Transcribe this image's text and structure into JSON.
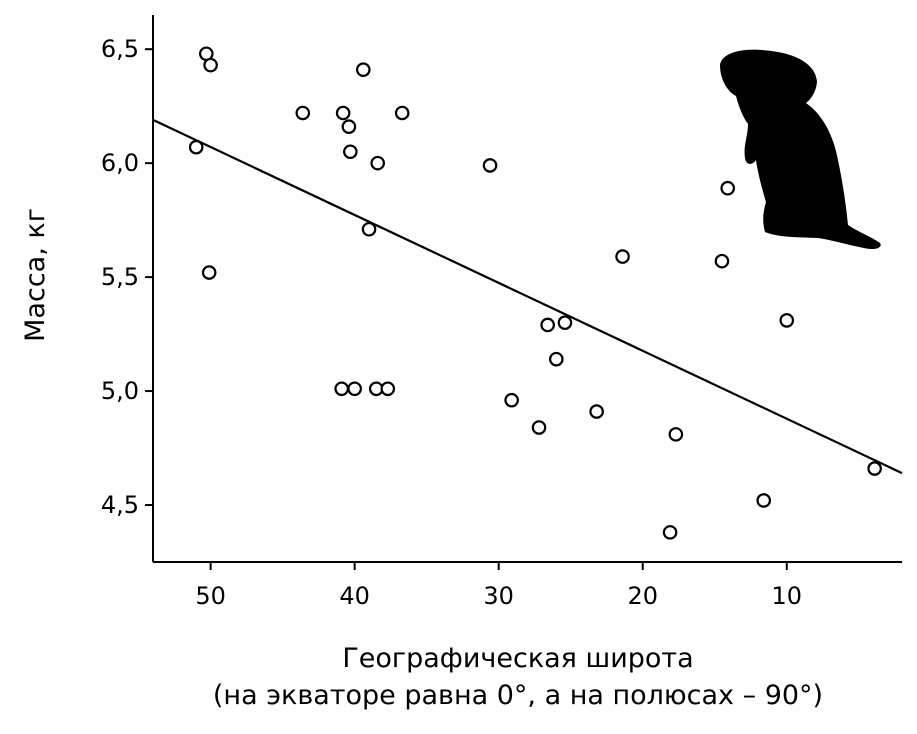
{
  "chart_data": {
    "type": "scatter",
    "xlabel": "Географическая широта",
    "xlabel_note": "(на экваторе равна 0°, а на полюсах – 90°)",
    "ylabel": "Масса, кг",
    "x_reversed": true,
    "xlim": [
      2,
      54
    ],
    "ylim": [
      4.25,
      6.65
    ],
    "x_ticks": [
      50,
      40,
      30,
      20,
      10
    ],
    "x_tick_labels": [
      "50",
      "40",
      "30",
      "20",
      "10"
    ],
    "y_ticks": [
      6.5,
      6.0,
      5.5,
      5.0,
      4.5
    ],
    "y_tick_labels": [
      "6,5",
      "6,0",
      "5,5",
      "5,0",
      "4,5"
    ],
    "grid": false,
    "marker": "open-circle",
    "points": [
      {
        "x": 50.3,
        "y": 6.48
      },
      {
        "x": 50.0,
        "y": 6.43
      },
      {
        "x": 51.0,
        "y": 6.07
      },
      {
        "x": 50.1,
        "y": 5.52
      },
      {
        "x": 43.6,
        "y": 6.22
      },
      {
        "x": 40.8,
        "y": 6.22
      },
      {
        "x": 40.4,
        "y": 6.16
      },
      {
        "x": 39.4,
        "y": 6.41
      },
      {
        "x": 36.7,
        "y": 6.22
      },
      {
        "x": 40.3,
        "y": 6.05
      },
      {
        "x": 38.4,
        "y": 6.0
      },
      {
        "x": 39.0,
        "y": 5.71
      },
      {
        "x": 30.6,
        "y": 5.99
      },
      {
        "x": 40.9,
        "y": 5.01
      },
      {
        "x": 40.0,
        "y": 5.01
      },
      {
        "x": 38.5,
        "y": 5.01
      },
      {
        "x": 37.7,
        "y": 5.01
      },
      {
        "x": 29.1,
        "y": 4.96
      },
      {
        "x": 27.2,
        "y": 4.84
      },
      {
        "x": 26.6,
        "y": 5.29
      },
      {
        "x": 25.4,
        "y": 5.3
      },
      {
        "x": 26.0,
        "y": 5.14
      },
      {
        "x": 23.2,
        "y": 4.91
      },
      {
        "x": 21.4,
        "y": 5.59
      },
      {
        "x": 17.7,
        "y": 4.81
      },
      {
        "x": 18.1,
        "y": 4.38
      },
      {
        "x": 14.5,
        "y": 5.57
      },
      {
        "x": 14.1,
        "y": 5.89
      },
      {
        "x": 11.6,
        "y": 4.52
      },
      {
        "x": 10.0,
        "y": 5.31
      },
      {
        "x": 3.9,
        "y": 4.66
      }
    ],
    "regression_line": {
      "x": [
        54,
        2
      ],
      "y": [
        6.19,
        4.64
      ]
    },
    "colors": {
      "axis": "#000000",
      "marker_stroke": "#000000",
      "marker_fill": "#ffffff",
      "line": "#000000",
      "silhouette": "#000000"
    },
    "decoration": "marmot-silhouette"
  }
}
